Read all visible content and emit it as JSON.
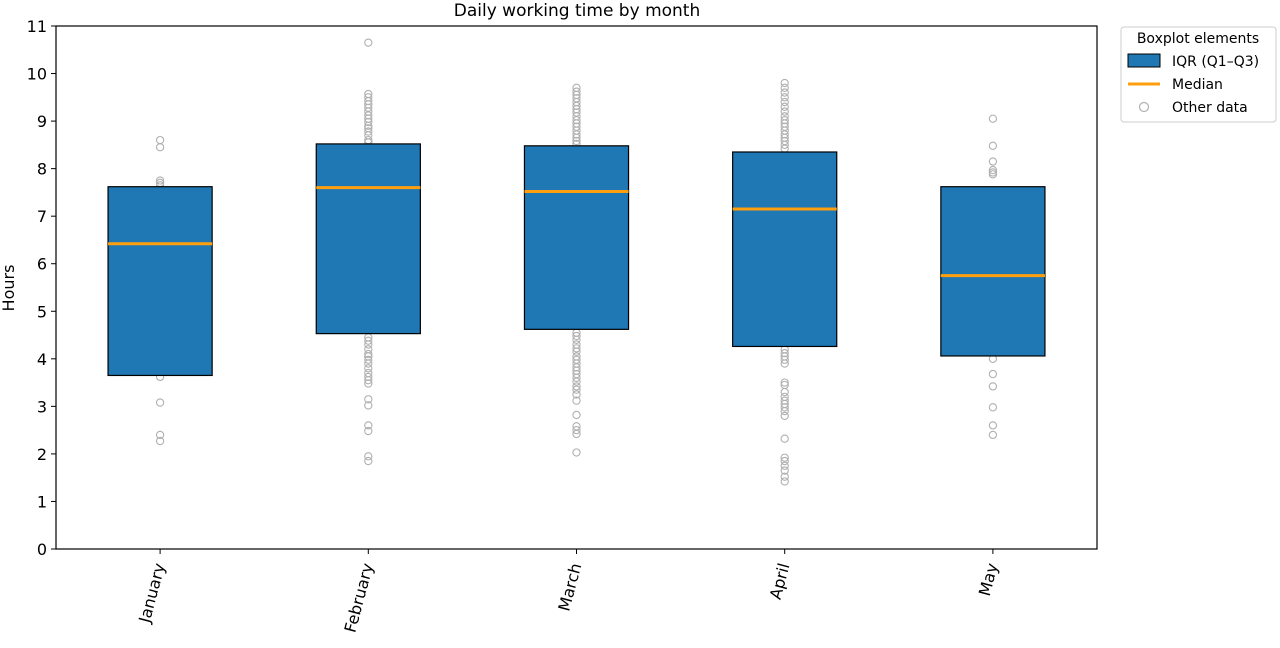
{
  "chart_data": {
    "type": "box",
    "title": "Daily working time by month",
    "xlabel": "",
    "ylabel": "Hours",
    "ylim": [
      0,
      11
    ],
    "yticks": [
      0,
      1,
      2,
      3,
      4,
      5,
      6,
      7,
      8,
      9,
      10,
      11
    ],
    "grid": false,
    "legend_position": "outside-top-right",
    "categories": [
      "January",
      "February",
      "March",
      "April",
      "May"
    ],
    "boxes": [
      {
        "category": "January",
        "q1": 3.65,
        "median": 6.42,
        "q3": 7.62,
        "points": [
          8.6,
          8.45,
          7.75,
          7.7,
          7.65,
          3.62,
          3.08,
          2.4,
          2.27
        ]
      },
      {
        "category": "February",
        "q1": 4.53,
        "median": 7.6,
        "q3": 8.52,
        "points": [
          10.65,
          9.57,
          9.5,
          9.42,
          9.35,
          9.28,
          9.2,
          9.12,
          9.05,
          8.98,
          8.9,
          8.85,
          8.78,
          8.7,
          8.6,
          8.55,
          4.45,
          4.38,
          4.3,
          4.2,
          4.1,
          4.05,
          3.98,
          3.9,
          3.8,
          3.7,
          3.62,
          3.55,
          3.48,
          3.15,
          3.02,
          2.6,
          2.48,
          1.95,
          1.85
        ]
      },
      {
        "category": "March",
        "q1": 4.62,
        "median": 7.52,
        "q3": 8.48,
        "points": [
          9.7,
          9.62,
          9.55,
          9.48,
          9.4,
          9.32,
          9.25,
          9.18,
          9.1,
          9.02,
          8.95,
          8.88,
          8.8,
          8.72,
          8.65,
          8.58,
          8.52,
          4.55,
          4.48,
          4.4,
          4.3,
          4.22,
          4.15,
          4.05,
          3.98,
          3.9,
          3.82,
          3.75,
          3.68,
          3.6,
          3.52,
          3.42,
          3.35,
          3.25,
          3.12,
          2.82,
          2.58,
          2.5,
          2.42,
          2.03
        ]
      },
      {
        "category": "April",
        "q1": 4.26,
        "median": 7.15,
        "q3": 8.35,
        "points": [
          9.8,
          9.7,
          9.6,
          9.5,
          9.4,
          9.3,
          9.2,
          9.1,
          9.02,
          8.95,
          8.88,
          8.8,
          8.72,
          8.65,
          8.58,
          8.5,
          8.42,
          4.2,
          4.12,
          4.05,
          3.98,
          3.9,
          3.5,
          3.45,
          3.3,
          3.2,
          3.12,
          3.05,
          2.98,
          2.9,
          2.8,
          2.32,
          1.92,
          1.85,
          1.75,
          1.65,
          1.52,
          1.42
        ]
      },
      {
        "category": "May",
        "q1": 4.06,
        "median": 5.75,
        "q3": 7.62,
        "points": [
          9.05,
          8.48,
          8.15,
          7.97,
          7.92,
          7.88,
          4.0,
          3.68,
          3.42,
          2.98,
          2.6,
          2.4
        ]
      }
    ],
    "legend": {
      "title": "Boxplot elements",
      "items": [
        {
          "label": "IQR (Q1–Q3)",
          "kind": "box"
        },
        {
          "label": "Median",
          "kind": "line"
        },
        {
          "label": "Other data",
          "kind": "marker"
        }
      ]
    },
    "colors": {
      "box_fill": "#1f77b4",
      "median": "#ff9f0e",
      "points": "#b0b0b0",
      "axis": "#000000"
    }
  }
}
